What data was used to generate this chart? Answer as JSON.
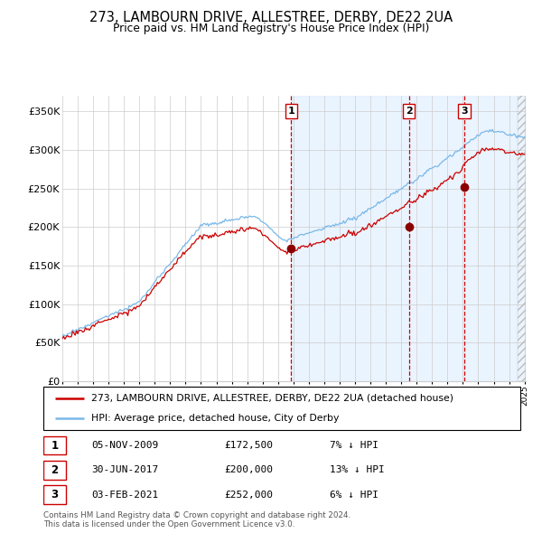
{
  "title1": "273, LAMBOURN DRIVE, ALLESTREE, DERBY, DE22 2UA",
  "title2": "Price paid vs. HM Land Registry's House Price Index (HPI)",
  "ylim": [
    0,
    370000
  ],
  "yticks": [
    0,
    50000,
    100000,
    150000,
    200000,
    250000,
    300000,
    350000
  ],
  "ytick_labels": [
    "£0",
    "£50K",
    "£100K",
    "£150K",
    "£200K",
    "£250K",
    "£300K",
    "£350K"
  ],
  "hpi_color": "#7ab8e8",
  "price_color": "#cc0000",
  "sale_marker_color": "#8b0000",
  "dashed_line_color": "#cc0000",
  "bg_shade_color": "#ddeeff",
  "grid_color": "#cccccc",
  "sale_year_floats": [
    2009.846,
    2017.496,
    2021.088
  ],
  "sale_prices": [
    172500,
    200000,
    252000
  ],
  "sale_labels": [
    "1",
    "2",
    "3"
  ],
  "sale_info": [
    {
      "num": "1",
      "date": "05-NOV-2009",
      "price": "£172,500",
      "pct": "7%",
      "dir": "↓"
    },
    {
      "num": "2",
      "date": "30-JUN-2017",
      "price": "£200,000",
      "pct": "13%",
      "dir": "↓"
    },
    {
      "num": "3",
      "date": "03-FEB-2021",
      "price": "£252,000",
      "pct": "6%",
      "dir": "↓"
    }
  ],
  "legend1": "273, LAMBOURN DRIVE, ALLESTREE, DERBY, DE22 2UA (detached house)",
  "legend2": "HPI: Average price, detached house, City of Derby",
  "footnote1": "Contains HM Land Registry data © Crown copyright and database right 2024.",
  "footnote2": "This data is licensed under the Open Government Licence v3.0."
}
